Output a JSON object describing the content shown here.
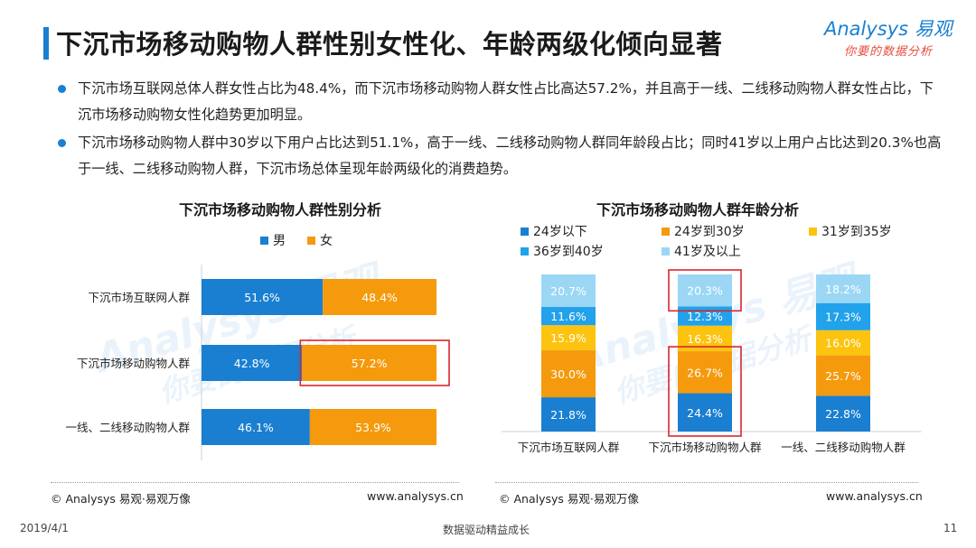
{
  "header": {
    "title": "下沉市场移动购物人群性别女性化、年龄两级化倾向显著",
    "logo_text": "Analysys 易观",
    "logo_tagline": "你要的数据分析"
  },
  "bullets": [
    "下沉市场互联网总体人群女性占比为48.4%，而下沉市场移动购物人群女性占比高达57.2%，并且高于一线、二线移动购物人群女性占比，下沉市场移动购物女性化趋势更加明显。",
    "下沉市场移动购物人群中30岁以下用户占比达到51.1%，高于一线、二线移动购物人群同年龄段占比；同时41岁以上用户占比达到20.3%也高于一线、二线移动购物人群，下沉市场总体呈现年龄两级化的消费趋势。"
  ],
  "chart_data": [
    {
      "type": "bar",
      "orientation": "horizontal",
      "stacked": true,
      "title": "下沉市场移动购物人群性别分析",
      "categories": [
        "下沉市场互联网人群",
        "下沉市场移动购物人群",
        "一线、二线移动购物人群"
      ],
      "series": [
        {
          "name": "男",
          "color": "#1a7fd1",
          "values": [
            51.6,
            42.8,
            46.1
          ]
        },
        {
          "name": "女",
          "color": "#f59a0c",
          "values": [
            48.4,
            57.2,
            53.9
          ]
        }
      ],
      "value_suffix": "%",
      "xlim": [
        0,
        100
      ],
      "legend": "top",
      "highlight": {
        "category_index": 1,
        "series_index": 1
      }
    },
    {
      "type": "bar",
      "orientation": "vertical",
      "stacked": true,
      "title": "下沉市场移动购物人群年龄分析",
      "categories": [
        "下沉市场互联网人群",
        "下沉市场移动购物人群",
        "一线、二线移动购物人群"
      ],
      "series": [
        {
          "name": "24岁以下",
          "color": "#1a7fd1",
          "values": [
            21.8,
            24.4,
            22.8
          ]
        },
        {
          "name": "24岁到30岁",
          "color": "#f59a0c",
          "values": [
            30.0,
            26.7,
            25.7
          ]
        },
        {
          "name": "31岁到35岁",
          "color": "#fcc30f",
          "values": [
            15.9,
            16.3,
            16.0
          ]
        },
        {
          "name": "36岁到40岁",
          "color": "#22a2ea",
          "values": [
            11.6,
            12.3,
            17.3
          ]
        },
        {
          "name": "41岁及以上",
          "color": "#9bd7f5",
          "values": [
            20.7,
            20.3,
            18.2
          ]
        }
      ],
      "value_suffix": "%",
      "ylim": [
        0,
        100
      ],
      "legend": "top",
      "highlights": [
        {
          "category_index": 1,
          "series_indices": [
            4
          ]
        },
        {
          "category_index": 1,
          "series_indices": [
            0,
            1
          ]
        }
      ]
    }
  ],
  "footer": {
    "left_source": "© Analysys 易观·易观万像",
    "left_url": "www.analysys.cn",
    "right_source": "© Analysys 易观·易观万像",
    "right_url": "www.analysys.cn",
    "date": "2019/4/1",
    "slogan": "数据驱动精益成长",
    "page_number": "11"
  },
  "watermark": {
    "brand": "Analysys 易观",
    "tagline": "你要的数据分析"
  }
}
